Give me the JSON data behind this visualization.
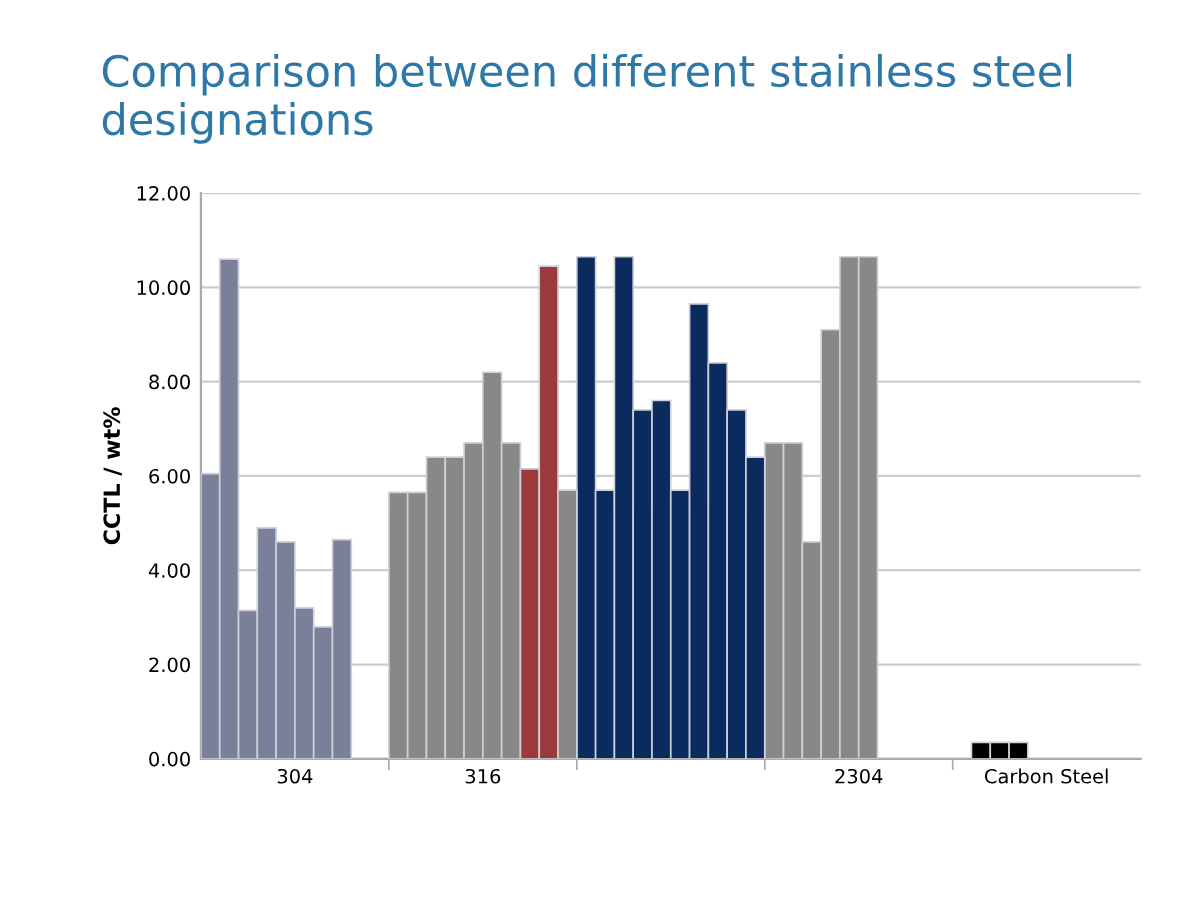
{
  "chart_data": {
    "type": "bar",
    "title": "Comparison between different stainless steel designations",
    "ylabel": "CCTL / wt%",
    "categories": [
      "304",
      "316",
      null,
      "2304",
      "Carbon Steel"
    ],
    "series": [
      {
        "colors": [
          "#7a7f9a",
          "#888888",
          "#0b2a5e",
          "#888888",
          "#000000"
        ],
        "values": [
          6.05,
          5.65,
          10.65,
          6.7,
          null
        ]
      },
      {
        "colors": [
          "#7a7f9a",
          "#888888",
          "#0b2a5e",
          "#888888",
          "#000000"
        ],
        "values": [
          10.6,
          5.65,
          5.7,
          6.7,
          0.35
        ]
      },
      {
        "colors": [
          "#7a7f9a",
          "#888888",
          "#0b2a5e",
          "#888888",
          "#000000"
        ],
        "values": [
          3.15,
          6.4,
          10.65,
          4.6,
          0.35
        ]
      },
      {
        "colors": [
          "#7a7f9a",
          "#888888",
          "#0b2a5e",
          "#888888",
          "#000000"
        ],
        "values": [
          4.9,
          6.4,
          7.4,
          9.1,
          0.35
        ]
      },
      {
        "colors": [
          "#7a7f9a",
          "#888888",
          "#0b2a5e",
          "#888888",
          "#000000"
        ],
        "values": [
          4.6,
          6.7,
          7.6,
          10.65,
          null
        ]
      },
      {
        "colors": [
          "#7a7f9a",
          "#888888",
          "#0b2a5e",
          "#888888",
          "#000000"
        ],
        "values": [
          3.2,
          8.2,
          5.7,
          10.65,
          null
        ]
      },
      {
        "colors": [
          "#7a7f9a",
          "#888888",
          "#0b2a5e",
          "#888888",
          "#000000"
        ],
        "values": [
          2.8,
          6.7,
          9.65,
          null,
          null
        ]
      },
      {
        "colors": [
          "#7a7f9a",
          "#9a3a3a",
          "#0b2a5e",
          "#888888",
          "#000000"
        ],
        "values": [
          4.65,
          6.15,
          8.4,
          null,
          null
        ]
      },
      {
        "colors": [
          "#7a7f9a",
          "#9a3a3a",
          "#0b2a5e",
          "#888888",
          "#000000"
        ],
        "values": [
          null,
          10.45,
          7.4,
          null,
          null
        ]
      },
      {
        "colors": [
          "#7a7f9a",
          "#888888",
          "#0b2a5e",
          "#888888",
          "#000000"
        ],
        "values": [
          null,
          5.7,
          6.4,
          null,
          null
        ]
      }
    ],
    "ylim": [
      0,
      12
    ],
    "yticks": [
      {
        "value": 0,
        "label": "0.00"
      },
      {
        "value": 2,
        "label": "2.00"
      },
      {
        "value": 4,
        "label": "4.00"
      },
      {
        "value": 6,
        "label": "6.00"
      },
      {
        "value": 8,
        "label": "8.00"
      },
      {
        "value": 10,
        "label": "10.00"
      },
      {
        "value": 12,
        "label": "12.00"
      }
    ],
    "grid": "y",
    "legend": false
  }
}
